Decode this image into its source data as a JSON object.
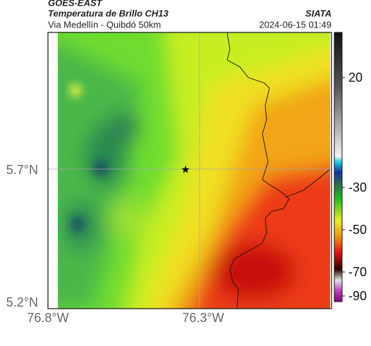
{
  "header": {
    "satellite": "GOES-EAST",
    "product": "Temperatura de Brillo CH13",
    "organization": "SIATA",
    "region": "Via Medellín - Quibdó 50km",
    "timestamp": "2024-06-15 01:49"
  },
  "axes": {
    "latitude": [
      "5.7°N",
      "5.2°N"
    ],
    "longitude": [
      "76.8°W",
      "76.3°W"
    ]
  },
  "colorbar": {
    "ticks": [
      "20",
      "-30",
      "-50",
      "-70",
      "-90"
    ]
  }
}
